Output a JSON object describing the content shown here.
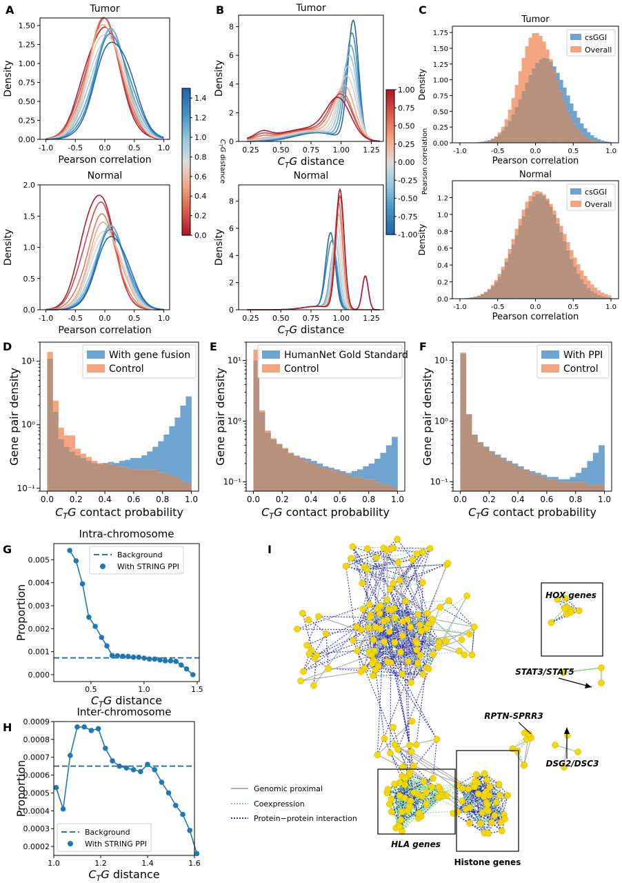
{
  "panel_letters": [
    "A",
    "B",
    "C",
    "D",
    "E",
    "F",
    "G",
    "H",
    "I"
  ],
  "colors": {
    "blue_bar": "#6fa3d0",
    "orange_bar": "#f4a580",
    "overlap": "#b6917d",
    "strong_blue": "#1f77b4",
    "node_yellow": "#f5d800",
    "genomic": "#b0b0b0",
    "coexp": "#7fd87f",
    "ppi": "#2b2bbf"
  },
  "chart_data": [
    {
      "id": "A-tumor",
      "type": "line",
      "title": "Tumor",
      "xlabel": "Pearson correlation",
      "ylabel": "Density",
      "xlim": [
        -1.1,
        1.1
      ],
      "ylim": [
        0,
        1.6
      ],
      "xticks": [
        "-1.0",
        "-0.5",
        "0.0",
        "0.5",
        "1.0"
      ],
      "yticks": [
        "0.00",
        "0.25",
        "0.50",
        "0.75",
        "1.00",
        "1.25",
        "1.50"
      ],
      "series_note": "kernel density curves, one per CTG distance bin",
      "centers": [
        -0.05,
        -0.03,
        -0.01,
        0.01,
        0.03,
        0.05,
        0.07,
        0.1,
        0.13,
        0.16
      ],
      "peaks": [
        1.5,
        1.53,
        1.52,
        1.49,
        1.45,
        1.43,
        1.41,
        1.38,
        1.36,
        1.34
      ],
      "sd": 0.3
    },
    {
      "id": "A-normal",
      "type": "line",
      "title": "Normal",
      "xlabel": "Pearson correlation",
      "ylabel": "Density",
      "xlim": [
        -1.1,
        1.1
      ],
      "ylim": [
        0,
        2.0
      ],
      "xticks": [
        "-1.0",
        "-0.5",
        "0.0",
        "0.5",
        "1.0"
      ],
      "yticks": [
        "0.0",
        "0.5",
        "1.0",
        "1.5",
        "2.0"
      ],
      "centers": [
        -0.12,
        -0.1,
        -0.05,
        0.0,
        0.02,
        0.05,
        0.08,
        0.1,
        0.12,
        0.14
      ],
      "peaks": [
        1.93,
        1.7,
        1.45,
        1.38,
        1.32,
        1.33,
        1.3,
        1.28,
        1.25,
        1.22
      ],
      "sd": 0.26
    },
    {
      "id": "A-colorbar",
      "type": "heatmap",
      "label": "CTG distance",
      "range": [
        0,
        1.5
      ],
      "ticks": [
        "0.0",
        "0.2",
        "0.4",
        "0.6",
        "0.8",
        "1.0",
        "1.2",
        "1.4"
      ]
    },
    {
      "id": "B-tumor",
      "type": "line",
      "title": "Tumor",
      "xlabel": "CTG distance",
      "ylabel": "Density",
      "xlim": [
        0.15,
        1.35
      ],
      "ylim": [
        0,
        8.8
      ],
      "xticks": [
        "0.25",
        "0.50",
        "0.75",
        "1.00",
        "1.25"
      ],
      "yticks": [
        "0",
        "2",
        "4",
        "6",
        "8"
      ],
      "peak_positions": [
        1.1,
        1.09,
        1.08,
        1.07,
        1.06,
        1.05,
        1.03,
        1.01,
        1.0,
        0.98
      ],
      "peaks": [
        8.3,
        7.4,
        6.5,
        5.8,
        5.0,
        4.3,
        3.6,
        3.1,
        2.9,
        2.6
      ]
    },
    {
      "id": "B-normal",
      "type": "line",
      "title": "Normal",
      "xlabel": "CTG distance",
      "ylabel": "Density",
      "xlim": [
        0.15,
        1.35
      ],
      "ylim": [
        0,
        9.2
      ],
      "xticks": [
        "0.25",
        "0.50",
        "0.75",
        "1.00",
        "1.25"
      ],
      "yticks": [
        "0",
        "2",
        "4",
        "6",
        "8"
      ],
      "peak_positions": [
        0.92,
        0.93,
        0.94,
        0.95,
        0.96,
        0.97,
        0.98,
        0.98,
        0.99,
        0.99
      ],
      "peaks": [
        4.8,
        4.5,
        4.2,
        5.0,
        5.6,
        6.3,
        7.0,
        7.8,
        8.3,
        8.8
      ]
    },
    {
      "id": "B-colorbar",
      "type": "heatmap",
      "label": "Pearson correlation",
      "range": [
        -1,
        1
      ],
      "ticks": [
        "-1.00",
        "-0.75",
        "-0.50",
        "-0.25",
        "0.00",
        "0.25",
        "0.50",
        "0.75",
        "1.00"
      ]
    },
    {
      "id": "C-tumor",
      "type": "bar",
      "title": "Tumor",
      "xlabel": "Pearson correlation",
      "ylabel": "Density",
      "xlim": [
        -1.1,
        1.1
      ],
      "ylim": [
        0,
        1.85
      ],
      "xticks": [
        "-1.0",
        "-0.5",
        "0.0",
        "0.5",
        "1.0"
      ],
      "yticks": [
        "0.00",
        "0.25",
        "0.50",
        "0.75",
        "1.00",
        "1.25",
        "1.50",
        "1.75"
      ],
      "legend": [
        "csGGI",
        "Overall"
      ],
      "series": [
        {
          "name": "csGGI",
          "center": 0.12,
          "sd": 0.28,
          "peak": 1.35
        },
        {
          "name": "Overall",
          "center": 0.0,
          "sd": 0.22,
          "peak": 1.75
        }
      ]
    },
    {
      "id": "C-normal",
      "type": "bar",
      "title": "Normal",
      "xlabel": "Pearson correlation",
      "ylabel": "Density",
      "xlim": [
        -1.1,
        1.1
      ],
      "ylim": [
        0,
        1.4
      ],
      "xticks": [
        "-1.0",
        "-0.5",
        "0.0",
        "0.5",
        "1.0"
      ],
      "yticks": [
        "0.0",
        "0.2",
        "0.4",
        "0.6",
        "0.8",
        "1.0",
        "1.2"
      ],
      "legend": [
        "csGGI",
        "Overall"
      ],
      "series": [
        {
          "name": "csGGI",
          "center": 0.05,
          "sd": 0.3,
          "peak": 1.25
        },
        {
          "name": "Overall",
          "center": 0.02,
          "sd": 0.29,
          "peak": 1.28
        }
      ]
    },
    {
      "id": "D",
      "type": "bar",
      "xlabel": "CTG contact probability",
      "ylabel": "Gene pair density",
      "log_y": true,
      "ylim": [
        0.09,
        20
      ],
      "xlim": [
        -0.05,
        1.05
      ],
      "xticks": [
        "0.0",
        "0.2",
        "0.4",
        "0.6",
        "0.8",
        "1.0"
      ],
      "series": [
        {
          "name": "With gene fusion",
          "values": [
            11,
            1.6,
            0.6,
            0.45,
            0.38,
            0.33,
            0.3,
            0.27,
            0.25,
            0.24,
            0.25,
            0.26,
            0.25,
            0.27,
            0.28,
            0.3,
            0.3,
            0.33,
            0.38,
            0.45,
            0.55,
            0.7,
            0.95,
            1.3,
            2.0,
            2.8
          ]
        },
        {
          "name": "Control",
          "values": [
            14,
            2.4,
            0.9,
            0.68,
            0.68,
            0.42,
            0.35,
            0.31,
            0.27,
            0.25,
            0.25,
            0.24,
            0.23,
            0.22,
            0.21,
            0.2,
            0.2,
            0.2,
            0.2,
            0.2,
            0.18,
            0.17,
            0.16,
            0.15,
            0.13,
            0.12
          ]
        }
      ]
    },
    {
      "id": "E",
      "type": "bar",
      "xlabel": "CTG contact probability",
      "ylabel": "Gene pair density",
      "log_y": true,
      "ylim": [
        0.07,
        20
      ],
      "xlim": [
        -0.05,
        1.05
      ],
      "xticks": [
        "0.0",
        "0.2",
        "0.4",
        "0.6",
        "0.8",
        "1.0"
      ],
      "series": [
        {
          "name": "HumanNet Gold Standard",
          "values": [
            10,
            1.4,
            0.65,
            0.5,
            0.42,
            0.35,
            0.3,
            0.27,
            0.25,
            0.24,
            0.22,
            0.2,
            0.18,
            0.17,
            0.16,
            0.15,
            0.14,
            0.15,
            0.16,
            0.18,
            0.2,
            0.24,
            0.3,
            0.4,
            0.55
          ]
        },
        {
          "name": "Control",
          "values": [
            15,
            1.5,
            0.7,
            0.52,
            0.42,
            0.36,
            0.3,
            0.27,
            0.24,
            0.22,
            0.2,
            0.18,
            0.17,
            0.16,
            0.15,
            0.14,
            0.13,
            0.12,
            0.12,
            0.11,
            0.11,
            0.1,
            0.09,
            0.09,
            0.08
          ]
        }
      ]
    },
    {
      "id": "F",
      "type": "bar",
      "xlabel": "CTG contact probability",
      "ylabel": "Gene pair density",
      "log_y": true,
      "ylim": [
        0.07,
        20
      ],
      "xlim": [
        -0.05,
        1.05
      ],
      "xticks": [
        "0.0",
        "0.2",
        "0.4",
        "0.6",
        "0.8",
        "1.0"
      ],
      "series": [
        {
          "name": "With PPI",
          "values": [
            13,
            1.3,
            0.6,
            0.45,
            0.38,
            0.32,
            0.28,
            0.25,
            0.22,
            0.2,
            0.18,
            0.16,
            0.15,
            0.14,
            0.13,
            0.12,
            0.12,
            0.11,
            0.11,
            0.12,
            0.14,
            0.17,
            0.22,
            0.3,
            0.4
          ]
        },
        {
          "name": "Control",
          "values": [
            13.5,
            1.3,
            0.6,
            0.45,
            0.37,
            0.31,
            0.27,
            0.24,
            0.21,
            0.19,
            0.17,
            0.16,
            0.14,
            0.13,
            0.12,
            0.11,
            0.11,
            0.1,
            0.1,
            0.1,
            0.1,
            0.1,
            0.09,
            0.09,
            0.09
          ]
        }
      ]
    },
    {
      "id": "G",
      "type": "line",
      "title": "Intra-chromosome",
      "xlabel": "CTG distance",
      "ylabel": "Proportion",
      "xlim": [
        0.15,
        1.52
      ],
      "ylim": [
        -0.0003,
        0.0057
      ],
      "xticks": [
        "0.5",
        "1.0",
        "1.5"
      ],
      "yticks": [
        "0.000",
        "0.001",
        "0.002",
        "0.003",
        "0.004",
        "0.005"
      ],
      "background": 0.00073,
      "legend": [
        "Background",
        "With STRING PPI"
      ],
      "x": [
        0.3,
        0.36,
        0.42,
        0.48,
        0.54,
        0.6,
        0.65,
        0.7,
        0.75,
        0.8,
        0.85,
        0.9,
        0.95,
        1.0,
        1.05,
        1.1,
        1.15,
        1.2,
        1.25,
        1.3,
        1.35,
        1.4,
        1.46
      ],
      "y": [
        0.0054,
        0.00495,
        0.00395,
        0.0025,
        0.0021,
        0.00162,
        0.00125,
        0.00083,
        0.00082,
        0.0008,
        0.00079,
        0.00076,
        0.00076,
        0.00072,
        0.00068,
        0.00068,
        0.00064,
        0.0006,
        0.0006,
        0.00058,
        0.00042,
        0.00025,
        0.0
      ]
    },
    {
      "id": "H",
      "type": "line",
      "title": "Inter-chromosome",
      "xlabel": "CTG distance",
      "ylabel": "Proportion",
      "xlim": [
        1.0,
        1.6
      ],
      "ylim": [
        0.00015,
        0.0009
      ],
      "xticks": [
        "1.0",
        "1.2",
        "1.4",
        "1.6"
      ],
      "yticks": [
        "0.0002",
        "0.0003",
        "0.0004",
        "0.0005",
        "0.0006",
        "0.0007",
        "0.0008",
        "0.0009"
      ],
      "background": 0.00065,
      "legend": [
        "Background",
        "With STRING PPI"
      ],
      "x": [
        1.01,
        1.04,
        1.07,
        1.1,
        1.13,
        1.16,
        1.19,
        1.22,
        1.25,
        1.28,
        1.31,
        1.34,
        1.37,
        1.4,
        1.43,
        1.46,
        1.49,
        1.52,
        1.55,
        1.58,
        1.61
      ],
      "y": [
        0.00053,
        0.00041,
        0.00071,
        0.00087,
        0.00087,
        0.00085,
        0.00086,
        0.00075,
        0.00068,
        0.00065,
        0.00064,
        0.00063,
        0.00062,
        0.00066,
        0.00063,
        0.00056,
        0.0005,
        0.00043,
        0.00038,
        0.00029,
        0.00016
      ]
    }
  ],
  "network": {
    "legend": [
      "Genomic proximal",
      "Coexpression",
      "Protein−protein interaction"
    ],
    "labels": {
      "hox": "HOX genes",
      "stat": "STAT3/STAT5",
      "rptn": "RPTN-SPRR3",
      "dsg": "DSG2/DSC3",
      "hla": "HLA genes",
      "histone": "Histone genes"
    }
  },
  "text": {
    "tumor": "Tumor",
    "normal": "Normal",
    "density": "Density",
    "pearson": "Pearson correlation",
    "ctg_dist": "distance",
    "ctg_contact": "contact probability",
    "gene_pair_density": "Gene pair density",
    "proportion": "Proportion",
    "intra": "Intra-chromosome",
    "inter": "Inter-chromosome",
    "colorbar_ctg": "distance",
    "colorbar_pearson": "Pearson correlation"
  }
}
